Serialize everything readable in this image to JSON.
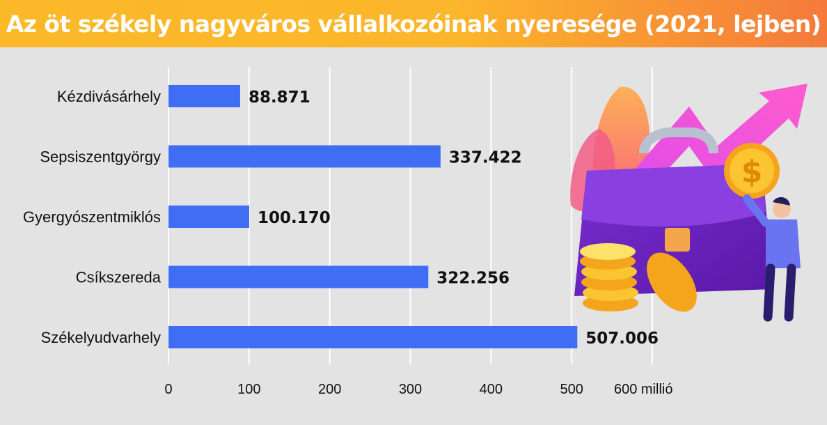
{
  "title": "Az öt székely nagyváros vállalkozóinak nyeresége (2021, lejben)",
  "chart_data": {
    "type": "bar",
    "orientation": "horizontal",
    "title": "Az öt székely nagyváros vállalkozóinak nyeresége (2021, lejben)",
    "categories": [
      "Kézdivásárhely",
      "Sepsiszentgyörgy",
      "Gyergyószentmiklós",
      "Csíkszereda",
      "Székelyudvarhely"
    ],
    "values": [
      88.871,
      337.422,
      100.17,
      322.256,
      507.006
    ],
    "value_labels": [
      "88.871",
      "337.422",
      "100.170",
      "322.256",
      "507.006"
    ],
    "x_ticks": [
      "0",
      "100",
      "200",
      "300",
      "400",
      "500",
      "600 millió"
    ],
    "xlim": [
      0,
      600
    ],
    "bar_color": "#3f6ef5",
    "grid": true
  },
  "colors": {
    "title_gradient_start": "#fbb829",
    "title_gradient_end": "#f47a3c",
    "background": "#e3e3e3"
  },
  "illustration": {
    "icons": [
      "briefcase-icon",
      "growth-arrow-icon",
      "dollar-coin-icon",
      "coin-stack-icon",
      "person-icon"
    ]
  }
}
